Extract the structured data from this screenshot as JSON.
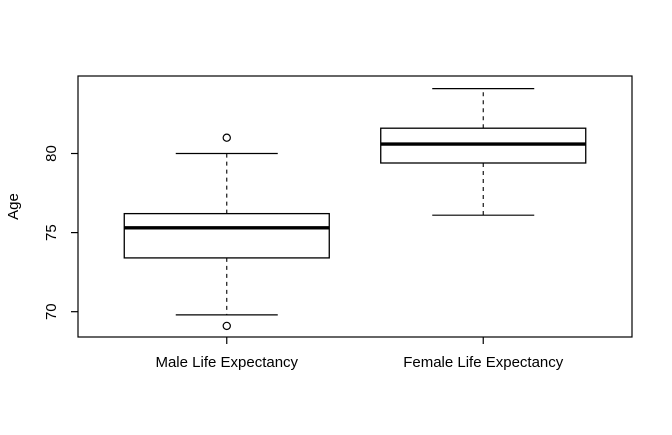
{
  "figure": {
    "background": "#ffffff",
    "line_color": "#000000",
    "ylabel": "Age"
  },
  "chart_data": {
    "type": "boxplot",
    "title": "",
    "xlabel": "",
    "ylabel": "Age",
    "ylim": [
      68.4,
      84.9
    ],
    "yticks": [
      70,
      75,
      80
    ],
    "grid": false,
    "legend": null,
    "categories": [
      "Male Life Expectancy",
      "Female Life Expectancy"
    ],
    "series": [
      {
        "name": "Male Life Expectancy",
        "lower_whisker": 69.8,
        "q1": 73.4,
        "median": 75.3,
        "q3": 76.2,
        "upper_whisker": 80.0,
        "outliers": [
          81.0,
          69.1
        ]
      },
      {
        "name": "Female Life Expectancy",
        "lower_whisker": 76.1,
        "q1": 79.4,
        "median": 80.6,
        "q3": 81.6,
        "upper_whisker": 84.1,
        "outliers": []
      }
    ]
  }
}
